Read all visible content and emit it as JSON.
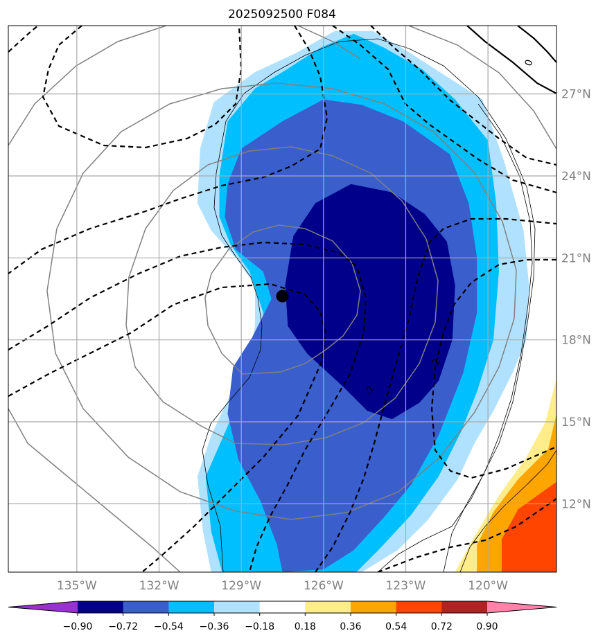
{
  "chart_data": {
    "type": "map-contour",
    "title": "2025092500 F084",
    "extent": {
      "lon_min": -137.5,
      "lon_max": -117.5,
      "lat_min": 9.5,
      "lat_max": 29.5
    },
    "lat_ticks": [
      {
        "value": 12,
        "label": "12°N"
      },
      {
        "value": 15,
        "label": "15°N"
      },
      {
        "value": 18,
        "label": "18°N"
      },
      {
        "value": 21,
        "label": "21°N"
      },
      {
        "value": 24,
        "label": "24°N"
      },
      {
        "value": 27,
        "label": "27°N"
      }
    ],
    "lon_ticks": [
      {
        "value": -135,
        "label": "135°W"
      },
      {
        "value": -132,
        "label": "132°W"
      },
      {
        "value": -129,
        "label": "129°W"
      },
      {
        "value": -126,
        "label": "126°W"
      },
      {
        "value": -123,
        "label": "123°W"
      },
      {
        "value": -120,
        "label": "120°W"
      }
    ],
    "storm_center": {
      "lon": -127.5,
      "lat": 19.6
    },
    "colorbar": {
      "levels": [
        "−0.90",
        "−0.72",
        "−0.54",
        "−0.36",
        "−0.18",
        "0.18",
        "0.36",
        "0.54",
        "0.72",
        "0.90"
      ],
      "colors": [
        "#9932cc",
        "#00008b",
        "#3a5fcd",
        "#00bfff",
        "#b0e2ff",
        "#ffffff",
        "#ffec8b",
        "#ffa500",
        "#ff4500",
        "#b22222",
        "#ff82ab"
      ]
    },
    "filled_contours": [
      {
        "level": "<= -0.18",
        "color": "#b0e2ff",
        "points": [
          [
            -130.1,
            9.5
          ],
          [
            -130.4,
            11
          ],
          [
            -130.6,
            13
          ],
          [
            -130.1,
            14.5
          ],
          [
            -129.4,
            16
          ],
          [
            -128.8,
            17
          ],
          [
            -128.5,
            18.5
          ],
          [
            -128.5,
            20
          ],
          [
            -129.2,
            21
          ],
          [
            -130.1,
            22
          ],
          [
            -130.6,
            23
          ],
          [
            -130.5,
            25
          ],
          [
            -130,
            26.7
          ],
          [
            -128.5,
            27.8
          ],
          [
            -127,
            28.5
          ],
          [
            -125.6,
            29.3
          ],
          [
            -124.2,
            29.3
          ],
          [
            -123,
            28.6
          ],
          [
            -121.6,
            27.7
          ],
          [
            -120.2,
            26.8
          ],
          [
            -119.4,
            24.5
          ],
          [
            -118.7,
            22
          ],
          [
            -118.5,
            20
          ],
          [
            -118.6,
            18
          ],
          [
            -119.1,
            16.8
          ],
          [
            -119.8,
            15.4
          ],
          [
            -120.5,
            14.2
          ],
          [
            -121.1,
            12.9
          ],
          [
            -122.2,
            11.4
          ],
          [
            -123.3,
            10.3
          ],
          [
            -124.6,
            9.5
          ]
        ]
      },
      {
        "level": "<= -0.36",
        "color": "#00bfff",
        "points": [
          [
            -129.7,
            9.5
          ],
          [
            -130.1,
            11
          ],
          [
            -130.3,
            13
          ],
          [
            -129.6,
            14.6
          ],
          [
            -128.9,
            16.2
          ],
          [
            -128.3,
            17.5
          ],
          [
            -128.2,
            19
          ],
          [
            -128.7,
            20.5
          ],
          [
            -129.4,
            21.5
          ],
          [
            -129.8,
            22.5
          ],
          [
            -129.8,
            24
          ],
          [
            -129.5,
            26
          ],
          [
            -128.5,
            27.2
          ],
          [
            -127.5,
            27.8
          ],
          [
            -126.1,
            28.7
          ],
          [
            -124.9,
            29.2
          ],
          [
            -123.8,
            28.7
          ],
          [
            -122.4,
            27.9
          ],
          [
            -121.2,
            26.8
          ],
          [
            -120,
            25.3
          ],
          [
            -119.7,
            23
          ],
          [
            -119.6,
            20.5
          ],
          [
            -119.8,
            18
          ],
          [
            -120.4,
            16.1
          ],
          [
            -121,
            14.6
          ],
          [
            -121.8,
            13
          ],
          [
            -122.8,
            11.6
          ],
          [
            -124,
            10.3
          ],
          [
            -124.8,
            9.5
          ]
        ]
      },
      {
        "level": "<= -0.54",
        "color": "#3a5fcd",
        "points": [
          [
            -127.5,
            9.5
          ],
          [
            -127.7,
            10.5
          ],
          [
            -128.3,
            12.1
          ],
          [
            -129.1,
            13.6
          ],
          [
            -129.5,
            15.3
          ],
          [
            -129.3,
            17
          ],
          [
            -128.6,
            18.1
          ],
          [
            -127.9,
            19.5
          ],
          [
            -128.2,
            20.5
          ],
          [
            -129.2,
            21.3
          ],
          [
            -129.6,
            22.5
          ],
          [
            -129.5,
            23.7
          ],
          [
            -129,
            25
          ],
          [
            -127.5,
            26
          ],
          [
            -126,
            26.8
          ],
          [
            -124.6,
            26.6
          ],
          [
            -123.1,
            26
          ],
          [
            -121.4,
            24.8
          ],
          [
            -120.7,
            23
          ],
          [
            -120.4,
            21
          ],
          [
            -120.4,
            19
          ],
          [
            -120.9,
            16.8
          ],
          [
            -121.8,
            14.5
          ],
          [
            -122.8,
            12.7
          ],
          [
            -123.8,
            11.5
          ],
          [
            -124.9,
            10.3
          ],
          [
            -126,
            9.6
          ]
        ]
      },
      {
        "level": "<= -0.72",
        "color": "#00008b",
        "points": [
          [
            -126.6,
            17.5
          ],
          [
            -127.3,
            18.5
          ],
          [
            -127.4,
            20
          ],
          [
            -127.1,
            21.8
          ],
          [
            -126.3,
            23
          ],
          [
            -125,
            23.7
          ],
          [
            -123.5,
            23.4
          ],
          [
            -122.3,
            22.6
          ],
          [
            -121.5,
            21.6
          ],
          [
            -121.2,
            20
          ],
          [
            -121.3,
            18
          ],
          [
            -121.8,
            16.5
          ],
          [
            -122.5,
            15.7
          ],
          [
            -123.5,
            15.1
          ],
          [
            -124.4,
            15.4
          ],
          [
            -125.3,
            16.3
          ]
        ]
      },
      {
        "level": ">= 0.18",
        "color": "#ffec8b",
        "points": [
          [
            -121.2,
            9.5
          ],
          [
            -120.5,
            10.8
          ],
          [
            -119.6,
            12.3
          ],
          [
            -118.6,
            13.7
          ],
          [
            -117.9,
            15
          ],
          [
            -117.5,
            16.6
          ],
          [
            -117.5,
            9.5
          ]
        ]
      },
      {
        "level": ">= 0.36",
        "color": "#ffa500",
        "points": [
          [
            -120.4,
            9.5
          ],
          [
            -120.4,
            10.5
          ],
          [
            -119.8,
            11.7
          ],
          [
            -118.9,
            12.9
          ],
          [
            -117.8,
            14
          ],
          [
            -117.5,
            15.3
          ],
          [
            -117.5,
            9.5
          ]
        ]
      },
      {
        "level": ">= 0.54",
        "color": "#ff4500",
        "points": [
          [
            -119.5,
            9.5
          ],
          [
            -119.5,
            10.7
          ],
          [
            -118.9,
            11.8
          ],
          [
            -117.5,
            12.8
          ],
          [
            -117.5,
            9.5
          ]
        ]
      }
    ],
    "contour_labels": [
      {
        "text": "0",
        "lon": -118.4,
        "lat": 28.1
      },
      {
        "text": "-2",
        "lon": -124.2,
        "lat": 16.1
      },
      {
        "text": "-2",
        "lon": -121.8,
        "lat": 17.1
      }
    ]
  }
}
